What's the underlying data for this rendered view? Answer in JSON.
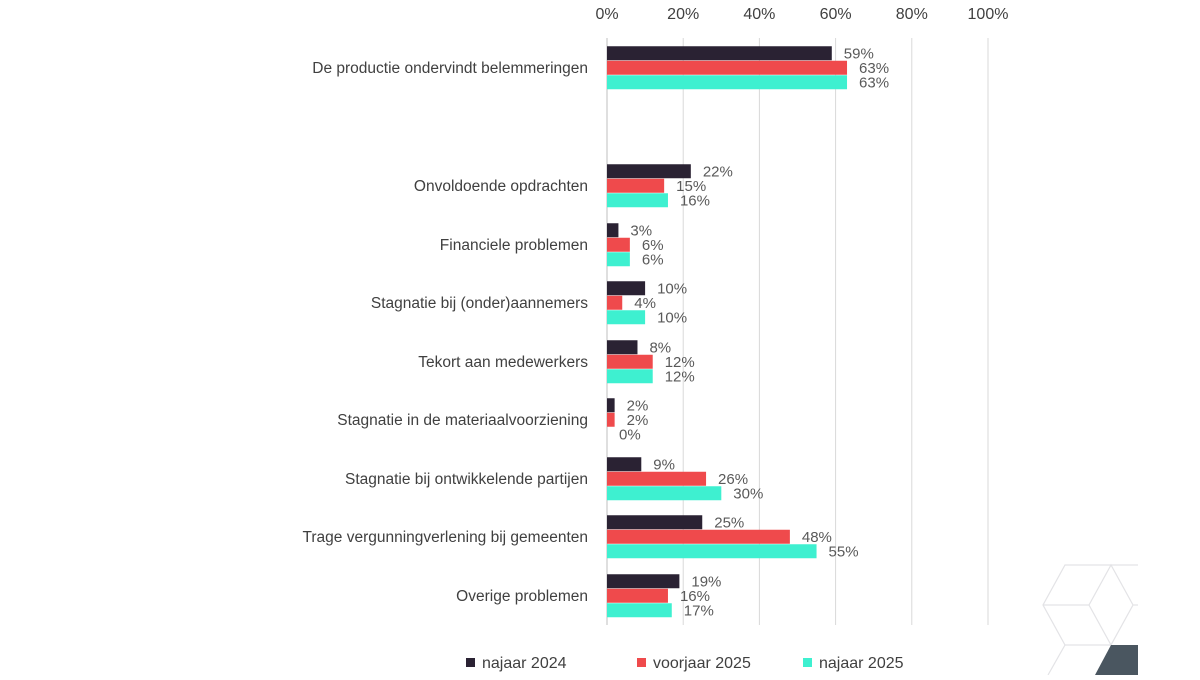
{
  "chart_data": {
    "type": "bar",
    "orientation": "horizontal",
    "title": "",
    "xlabel": "",
    "ylabel": "",
    "xlim": [
      0,
      100
    ],
    "x_ticks": [
      "0%",
      "20%",
      "40%",
      "60%",
      "80%",
      "100%"
    ],
    "x_tick_values": [
      0,
      20,
      40,
      60,
      80,
      100
    ],
    "grid": true,
    "legend_position": "bottom",
    "categories": [
      "De productie ondervindt belemmeringen",
      "Onvoldoende opdrachten",
      "Financiele problemen",
      "Stagnatie bij (onder)aannemers",
      "Tekort aan medewerkers",
      "Stagnatie in de materiaalvoorziening",
      "Stagnatie bij ontwikkelende partijen",
      "Trage vergunningverlening bij gemeenten",
      "Overige problemen"
    ],
    "series": [
      {
        "name": "najaar 2024",
        "color": "#2a2233",
        "values": [
          59,
          22,
          3,
          10,
          8,
          2,
          9,
          25,
          19
        ],
        "labels": [
          "59%",
          "22%",
          "3%",
          "10%",
          "8%",
          "2%",
          "9%",
          "25%",
          "19%"
        ]
      },
      {
        "name": "voorjaar 2025",
        "color": "#ef4a4c",
        "values": [
          63,
          15,
          6,
          4,
          12,
          2,
          26,
          48,
          16
        ],
        "labels": [
          "63%",
          "15%",
          "6%",
          "4%",
          "12%",
          "2%",
          "26%",
          "48%",
          "16%"
        ]
      },
      {
        "name": "najaar 2025",
        "color": "#3ef0d0",
        "values": [
          63,
          16,
          6,
          10,
          12,
          0,
          30,
          55,
          17
        ],
        "labels": [
          "63%",
          "16%",
          "6%",
          "10%",
          "12%",
          "0%",
          "30%",
          "55%",
          "17%"
        ]
      }
    ]
  }
}
